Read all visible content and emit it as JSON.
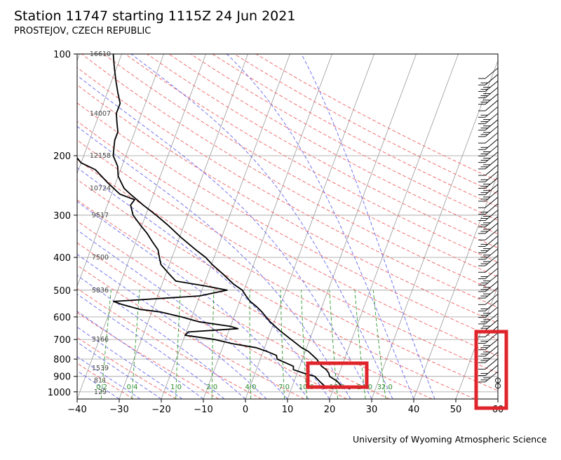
{
  "header": {
    "title": "Station 11747 starting 1115Z 24 Jun 2021",
    "subtitle": "PROSTEJOV, CZECH REPUBLIC"
  },
  "footer": {
    "credit": "University of Wyoming Atmospheric Science"
  },
  "chart_data": {
    "type": "skew-t",
    "title": "Station 11747 starting 1115Z 24 Jun 2021",
    "subtitle": "PROSTEJOV, CZECH REPUBLIC",
    "xlabel": "",
    "ylabel": "",
    "xlim": [
      -40,
      60
    ],
    "ylim": [
      1050,
      100
    ],
    "y_scale": "log (pressure, hPa)",
    "x_ticks": [
      "−40",
      "−30",
      "−20",
      "−10",
      "0",
      "10",
      "20",
      "30",
      "40",
      "50",
      "60"
    ],
    "y_ticks": [
      "100",
      "200",
      "300",
      "400",
      "500",
      "600",
      "700",
      "800",
      "900",
      "1000"
    ],
    "height_labels": [
      {
        "p": 100,
        "text": "16610"
      },
      {
        "p": 150,
        "text": "14007"
      },
      {
        "p": 200,
        "text": "12158"
      },
      {
        "p": 250,
        "text": "10724"
      },
      {
        "p": 300,
        "text": "9517"
      },
      {
        "p": 400,
        "text": "7500"
      },
      {
        "p": 500,
        "text": "5836"
      },
      {
        "p": 700,
        "text": "3166"
      },
      {
        "p": 850,
        "text": "1539"
      },
      {
        "p": 925,
        "text": "811"
      },
      {
        "p": 1000,
        "text": "129"
      }
    ],
    "mixing_ratio_labels": [
      "0.2",
      "0.4",
      "1.0",
      "2.0",
      "4.0",
      "7.0",
      "10.0",
      "16.0",
      "24.0",
      "32.0"
    ],
    "series": [
      {
        "name": "",
        "color": "#000000",
        "points": [
          [
            981,
            24.0
          ],
          [
            960,
            21.6
          ],
          [
            930,
            20.2
          ],
          [
            900,
            18.0
          ],
          [
            880,
            17.5
          ],
          [
            860,
            16.6
          ],
          [
            840,
            15.2
          ],
          [
            800,
            13.4
          ],
          [
            760,
            10.8
          ],
          [
            740,
            8.8
          ],
          [
            700,
            5.6
          ],
          [
            660,
            2.2
          ],
          [
            620,
            -1.0
          ],
          [
            600,
            -2.4
          ],
          [
            580,
            -3.8
          ],
          [
            560,
            -5.5
          ],
          [
            540,
            -7.5
          ],
          [
            520,
            -9.0
          ],
          [
            500,
            -10.4
          ],
          [
            480,
            -13.0
          ],
          [
            450,
            -16.2
          ],
          [
            420,
            -19.8
          ],
          [
            400,
            -22.0
          ],
          [
            380,
            -25.0
          ],
          [
            350,
            -29.5
          ],
          [
            320,
            -34.0
          ],
          [
            300,
            -37.5
          ],
          [
            280,
            -41.5
          ],
          [
            260,
            -45.5
          ],
          [
            250,
            -47.5
          ],
          [
            230,
            -50.0
          ],
          [
            215,
            -51.0
          ],
          [
            200,
            -53.0
          ],
          [
            190,
            -53.5
          ],
          [
            180,
            -54.0
          ],
          [
            170,
            -54.0
          ],
          [
            160,
            -55.0
          ],
          [
            150,
            -56.0
          ],
          [
            140,
            -56.0
          ],
          [
            130,
            -57.5
          ],
          [
            120,
            -59.0
          ],
          [
            110,
            -60.5
          ],
          [
            100,
            -62.0
          ]
        ]
      },
      {
        "name": "",
        "color": "#000000",
        "points": [
          [
            981,
            17.8
          ],
          [
            960,
            17.6
          ],
          [
            930,
            16.0
          ],
          [
            900,
            14.5
          ],
          [
            880,
            11.5
          ],
          [
            860,
            8.8
          ],
          [
            840,
            8.5
          ],
          [
            800,
            4.0
          ],
          [
            780,
            3.5
          ],
          [
            760,
            1.0
          ],
          [
            740,
            -2.0
          ],
          [
            720,
            -8.0
          ],
          [
            700,
            -12.5
          ],
          [
            680,
            -20.0
          ],
          [
            665,
            -19.5
          ],
          [
            650,
            -8.0
          ],
          [
            640,
            -10.0
          ],
          [
            620,
            -18.0
          ],
          [
            600,
            -22.5
          ],
          [
            580,
            -28.0
          ],
          [
            570,
            -33.0
          ],
          [
            550,
            -38.0
          ],
          [
            540,
            -40.0
          ],
          [
            520,
            -20.0
          ],
          [
            500,
            -14.0
          ],
          [
            485,
            -20.0
          ],
          [
            470,
            -27.0
          ],
          [
            450,
            -29.0
          ],
          [
            420,
            -32.0
          ],
          [
            400,
            -33.0
          ],
          [
            380,
            -34.0
          ],
          [
            360,
            -36.0
          ],
          [
            340,
            -38.0
          ],
          [
            320,
            -40.5
          ],
          [
            300,
            -43.0
          ],
          [
            280,
            -44.5
          ],
          [
            270,
            -44.0
          ],
          [
            260,
            -48.0
          ],
          [
            240,
            -52.0
          ],
          [
            220,
            -56.0
          ],
          [
            210,
            -60.0
          ],
          [
            200,
            -62.0
          ],
          [
            190,
            -64.0
          ],
          [
            180,
            -67.0
          ],
          [
            165,
            -72.0
          ],
          [
            150,
            -74.0
          ],
          [
            140,
            -76.0
          ],
          [
            130,
            -77.5
          ],
          [
            120,
            -79.0
          ],
          [
            110,
            -80.0
          ],
          [
            100,
            -81.0
          ]
        ]
      }
    ],
    "wind_barbs_present": true,
    "grid": true
  }
}
